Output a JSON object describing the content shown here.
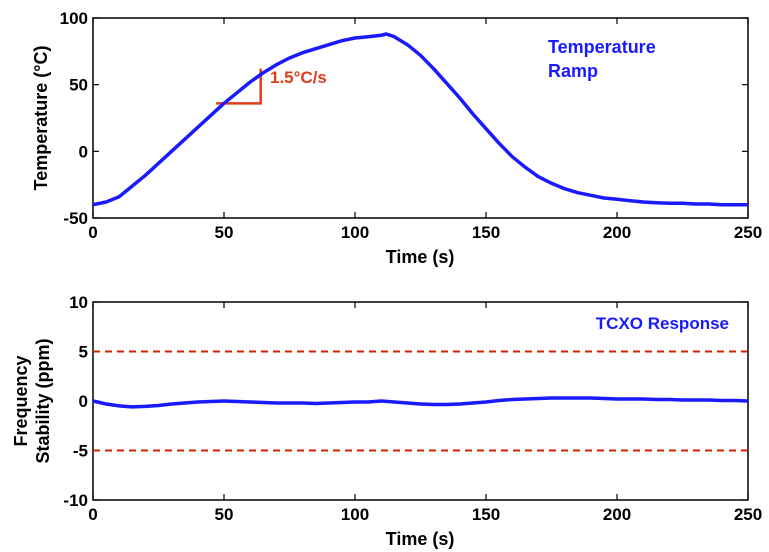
{
  "colors": {
    "series": "#1a1aff",
    "slope_marker": "#e03c1c",
    "limit_lines": "#cc2200",
    "axes": "#000000"
  },
  "chart_data": [
    {
      "type": "line",
      "xlabel": "Time (s)",
      "ylabel": "Temperature (°C)",
      "xlim": [
        0,
        250
      ],
      "ylim": [
        -50,
        100
      ],
      "xticks": [
        "0",
        "50",
        "100",
        "150",
        "200",
        "250"
      ],
      "yticks": [
        "-50",
        "0",
        "50",
        "100"
      ],
      "grid": false,
      "legend_text": [
        "Temperature",
        "Ramp"
      ],
      "legend_placement": "top-right",
      "series": [
        {
          "x": [
            0,
            5,
            10,
            15,
            20,
            25,
            30,
            35,
            40,
            45,
            50,
            55,
            60,
            65,
            70,
            75,
            80,
            85,
            90,
            95,
            100,
            105,
            110,
            112,
            115,
            120,
            125,
            130,
            135,
            140,
            145,
            150,
            155,
            160,
            165,
            170,
            175,
            180,
            185,
            190,
            195,
            200,
            205,
            210,
            215,
            220,
            225,
            230,
            235,
            240,
            245,
            250
          ],
          "y": [
            -40,
            -38,
            -34,
            -26,
            -18,
            -9,
            0,
            9,
            18,
            27,
            36,
            44,
            52,
            59,
            65,
            70,
            74,
            77,
            80,
            83,
            85,
            86,
            87,
            88,
            86,
            80,
            72,
            62,
            51,
            40,
            28,
            17,
            6,
            -4,
            -12,
            -19,
            -24,
            -28,
            -31,
            -33,
            -35,
            -36,
            -37,
            -38,
            -38.5,
            -39,
            -39,
            -39.5,
            -39.5,
            -40,
            -40,
            -40
          ]
        }
      ],
      "annotations": [
        {
          "text": "1.5°C/s",
          "triangle_x": [
            47,
            64
          ],
          "triangle_y": [
            36,
            62
          ]
        }
      ]
    },
    {
      "type": "line",
      "xlabel": "Time (s)",
      "ylabel": "Frequency Stability (ppm)",
      "ylabel_lines": [
        "Frequency",
        "Stability (ppm)"
      ],
      "xlim": [
        0,
        250
      ],
      "ylim": [
        -10,
        10
      ],
      "xticks": [
        "0",
        "50",
        "100",
        "150",
        "200",
        "250"
      ],
      "yticks": [
        "-10",
        "-5",
        "0",
        "5",
        "10"
      ],
      "grid": false,
      "legend_text": [
        "TCXO Response"
      ],
      "legend_placement": "top-right",
      "reference_lines": [
        5,
        -5
      ],
      "series": [
        {
          "x": [
            0,
            5,
            10,
            15,
            20,
            25,
            30,
            35,
            40,
            45,
            50,
            55,
            60,
            65,
            70,
            75,
            80,
            85,
            90,
            95,
            100,
            105,
            110,
            115,
            120,
            125,
            130,
            135,
            140,
            145,
            150,
            155,
            160,
            165,
            170,
            175,
            180,
            185,
            190,
            195,
            200,
            205,
            210,
            215,
            220,
            225,
            230,
            235,
            240,
            245,
            250
          ],
          "y": [
            0,
            -0.3,
            -0.5,
            -0.6,
            -0.55,
            -0.45,
            -0.3,
            -0.2,
            -0.1,
            -0.05,
            0,
            -0.05,
            -0.1,
            -0.15,
            -0.2,
            -0.2,
            -0.2,
            -0.25,
            -0.2,
            -0.15,
            -0.1,
            -0.1,
            0,
            -0.1,
            -0.2,
            -0.3,
            -0.35,
            -0.35,
            -0.3,
            -0.2,
            -0.1,
            0.05,
            0.15,
            0.2,
            0.25,
            0.3,
            0.3,
            0.3,
            0.3,
            0.25,
            0.2,
            0.2,
            0.2,
            0.15,
            0.15,
            0.1,
            0.1,
            0.1,
            0.05,
            0.05,
            0
          ]
        }
      ]
    }
  ]
}
